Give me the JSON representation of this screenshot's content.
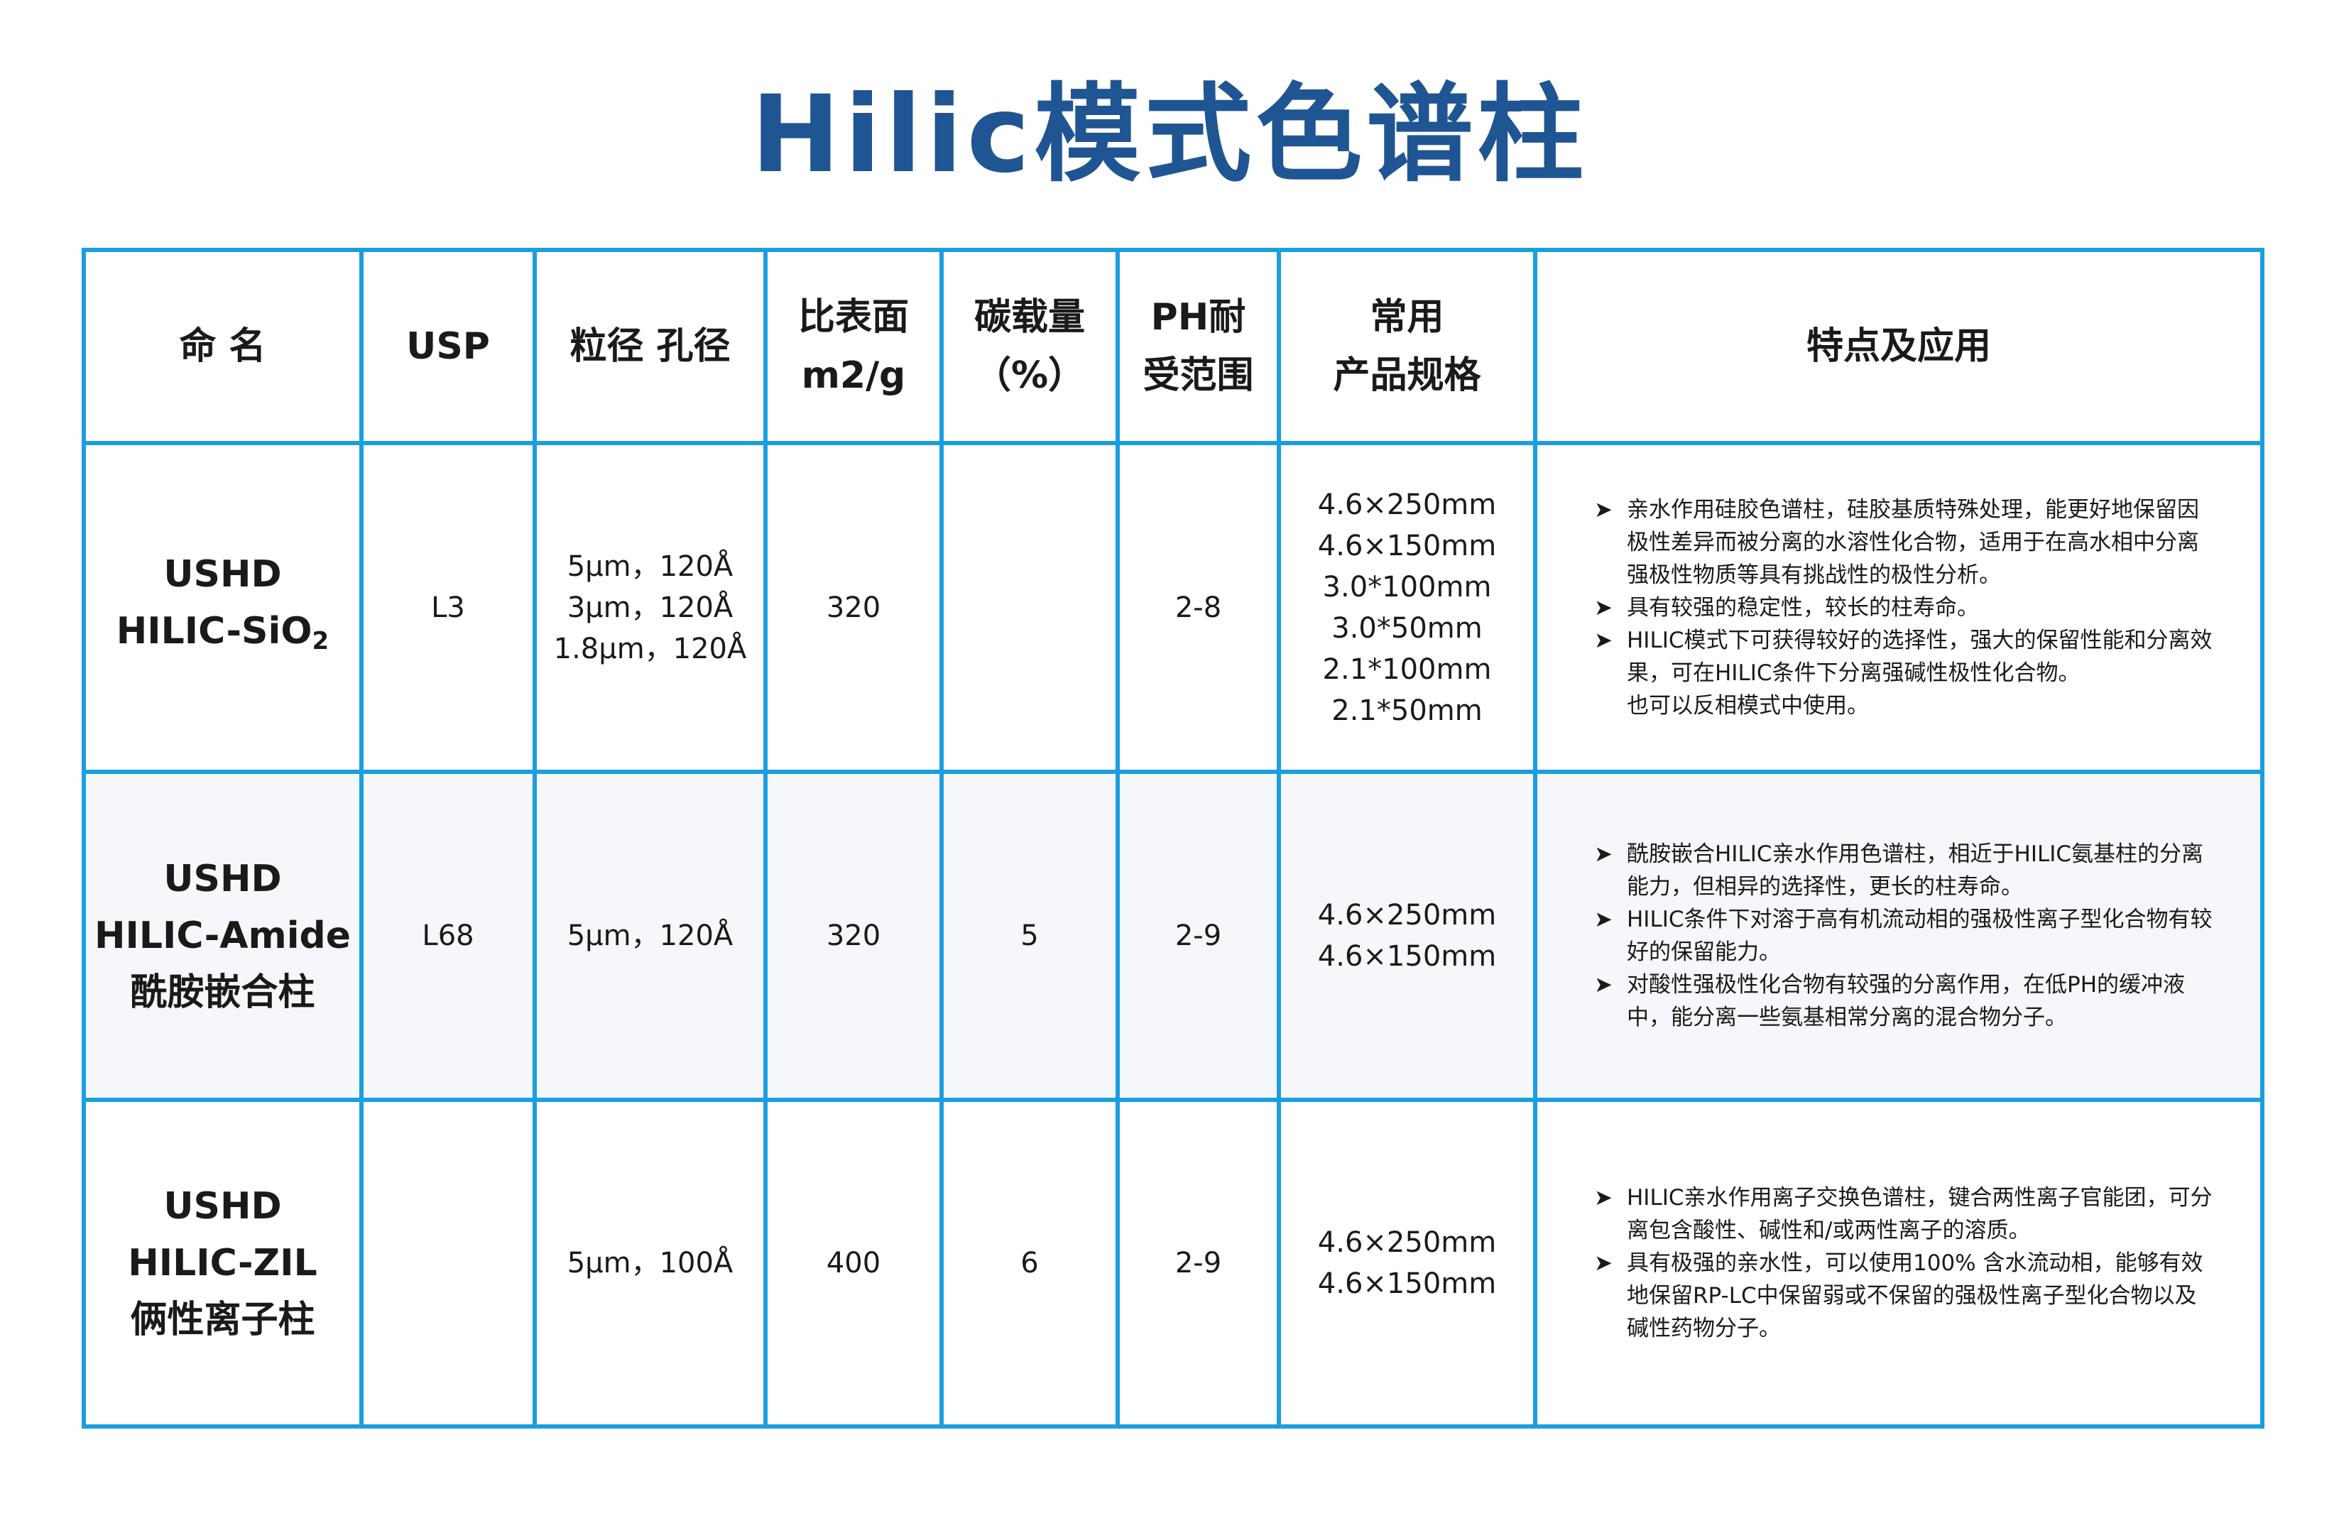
{
  "title": "Hilic模式色谱柱",
  "colors": {
    "title": "#1f5592",
    "border": "#1a9ee0",
    "alt_row": "#f5f7fb"
  },
  "headers": [
    "命 名",
    "USP",
    "粒径 孔径",
    "比表面\nm2/g",
    "碳载量\n（%）",
    "PH耐\n受范围",
    "常用\n产品规格",
    "特点及应用"
  ],
  "rows": [
    {
      "name": [
        "USHD",
        "HILIC-SiO",
        "2"
      ],
      "usp": "L3",
      "particle": [
        "5μm，120Å",
        "3μm，120Å",
        "1.8μm，120Å"
      ],
      "surface": "320",
      "carbon": "",
      "ph": "2-8",
      "specs": [
        "4.6×250mm",
        "4.6×150mm",
        "3.0*100mm",
        "3.0*50mm",
        "2.1*100mm",
        "2.1*50mm"
      ],
      "features": [
        {
          "bullet": true,
          "text": "亲水作用硅胶色谱柱，硅胶基质特殊处理，能更好地保留因极性差异而被分离的水溶性化合物，适用于在高水相中分离强极性物质等具有挑战性的极性分析。"
        },
        {
          "bullet": true,
          "text": "具有较强的稳定性，较长的柱寿命。"
        },
        {
          "bullet": true,
          "text": "HILIC模式下可获得较好的选择性，强大的保留性能和分离效果，可在HILIC条件下分离强碱性极性化合物。"
        },
        {
          "bullet": false,
          "text": "也可以反相模式中使用。"
        }
      ]
    },
    {
      "name": [
        "USHD",
        "HILIC-Amide",
        "酰胺嵌合柱"
      ],
      "usp": "L68",
      "particle": [
        "5μm，120Å"
      ],
      "surface": "320",
      "carbon": "5",
      "ph": "2-9",
      "specs": [
        "4.6×250mm",
        "4.6×150mm"
      ],
      "features": [
        {
          "bullet": true,
          "text": "酰胺嵌合HILIC亲水作用色谱柱，相近于HILIC氨基柱的分离能力，但相异的选择性，更长的柱寿命。"
        },
        {
          "bullet": true,
          "text": "HILIC条件下对溶于高有机流动相的强极性离子型化合物有较好的保留能力。"
        },
        {
          "bullet": true,
          "text": "对酸性强极性化合物有较强的分离作用，在低PH的缓冲液中，能分离一些氨基相常分离的混合物分子。"
        }
      ]
    },
    {
      "name": [
        "USHD",
        "HILIC-ZIL",
        "俩性离子柱"
      ],
      "usp": "",
      "particle": [
        "5μm，100Å"
      ],
      "surface": "400",
      "carbon": "6",
      "ph": "2-9",
      "specs": [
        "4.6×250mm",
        "4.6×150mm"
      ],
      "features": [
        {
          "bullet": true,
          "text": "HILIC亲水作用离子交换色谱柱，键合两性离子官能团，可分离包含酸性、碱性和/或两性离子的溶质。"
        },
        {
          "bullet": true,
          "text": "具有极强的亲水性，可以使用100% 含水流动相，能够有效地保留RP-LC中保留弱或不保留的强极性离子型化合物以及碱性药物分子。"
        }
      ]
    }
  ]
}
